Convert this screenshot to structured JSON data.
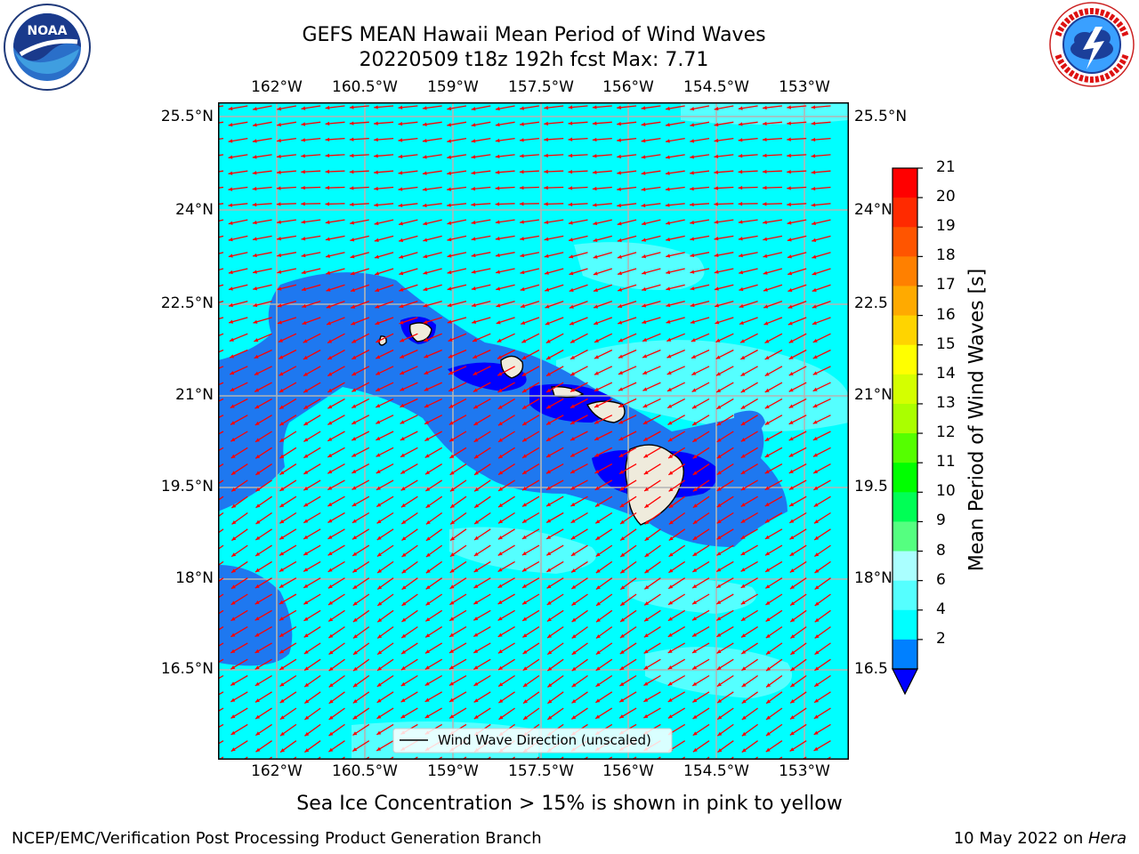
{
  "header": {
    "title_line1": "GEFS MEAN Hawaii Mean Period of Wind Waves",
    "title_line2": "20220509 t18z 192h fcst   Max: 7.71"
  },
  "logos": {
    "left": {
      "text": "NOAA",
      "ring_text": "NATIONAL OCEANIC AND ATMOSPHERIC ADMINISTRATION · U.S. DEPARTMENT OF COMMERCE"
    },
    "right": {
      "ring_text": "NATIONAL WEATHER SERVICE"
    }
  },
  "axes": {
    "lon_ticks": [
      "162°W",
      "160.5°W",
      "159°W",
      "157.5°W",
      "156°W",
      "154.5°W",
      "153°W"
    ],
    "lat_ticks": [
      "25.5°N",
      "24°N",
      "22.5°N",
      "21°N",
      "19.5°N",
      "18°N",
      "16.5°N"
    ],
    "lat_ticks_right": [
      "25.5°N",
      "24°N",
      "22.5",
      "21°N",
      "19.5",
      "18°N",
      "16.5"
    ],
    "lon_range": [
      -163,
      -152.5
    ],
    "lat_range": [
      15.25,
      26
    ]
  },
  "legend": {
    "label": "Wind Wave Direction (unscaled)"
  },
  "colorbar": {
    "label": "Mean Period of Wind Waves [s]",
    "ticks": [
      "21",
      "20",
      "19",
      "18",
      "17",
      "16",
      "15",
      "14",
      "13",
      "12",
      "11",
      "10",
      "9",
      "8",
      "6",
      "4",
      "2"
    ],
    "colors": [
      "#ff0000",
      "#ff2a00",
      "#ff5500",
      "#ff8000",
      "#ffaa00",
      "#ffd400",
      "#ffff00",
      "#d4ff00",
      "#aaff00",
      "#55ff00",
      "#00ff00",
      "#00ff55",
      "#55ff80",
      "#aaffff",
      "#55ffff",
      "#00ffff",
      "#0080ff"
    ],
    "under_color": "#0000ff"
  },
  "map_colors": {
    "sea_2_4": "#1e78f0",
    "sea_4_6": "#00ffff",
    "sea_6_8": "#55ffff",
    "sea_under": "#0000ff",
    "land": "#efebdc",
    "arrow": "#ff0000",
    "grid": "#b4b4b4"
  },
  "footer": {
    "note": "Sea Ice Concentration > 15% is shown in pink to yellow",
    "left": "NCEP/EMC/Verification Post Processing Product Generation Branch",
    "right_prefix": "10 May 2022 on ",
    "right_machine": "Hera"
  }
}
